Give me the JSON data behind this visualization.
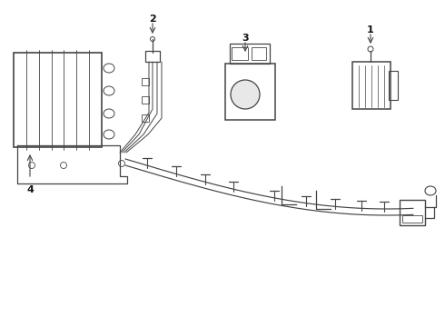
{
  "background_color": "#ffffff",
  "line_color": "#444444",
  "label_color": "#111111",
  "figsize": [
    4.9,
    3.6
  ],
  "dpi": 100
}
